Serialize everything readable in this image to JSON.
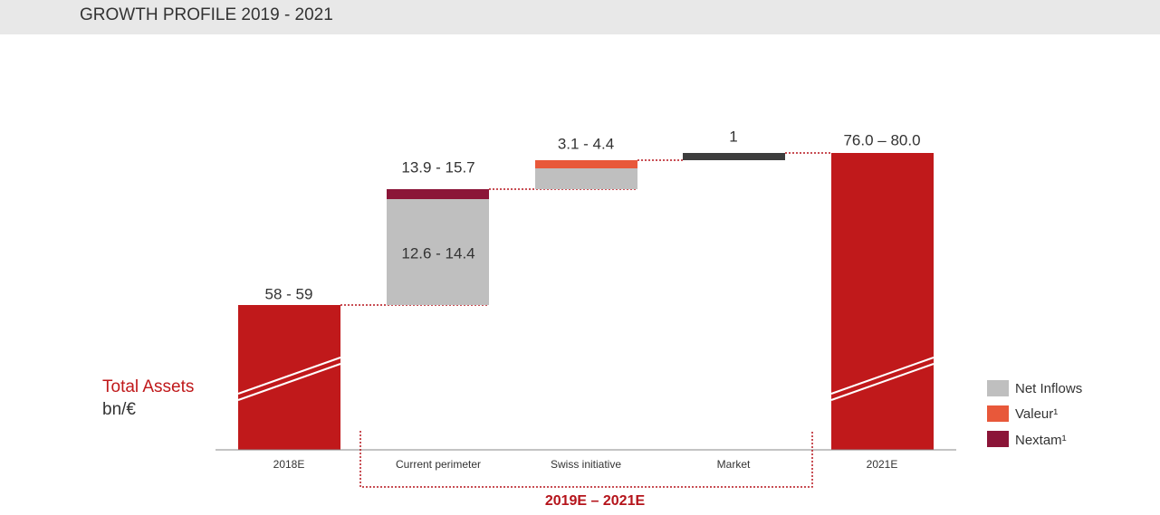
{
  "header": {
    "title": "GROWTH PROFILE 2019 - 2021"
  },
  "axis_label": {
    "title": "Total Assets",
    "unit": "bn/€"
  },
  "steps": [
    {
      "category": "2018E",
      "label": "58 - 59"
    },
    {
      "category": "Current perimeter",
      "label": "13.9 - 15.7",
      "inner_label": "12.6 - 14.4"
    },
    {
      "category": "Swiss initiative",
      "label": "3.1 - 4.4"
    },
    {
      "category": "Market",
      "label": "1"
    },
    {
      "category": "2021E",
      "label": "76.0 – 80.0"
    }
  ],
  "period_label": "2019E – 2021E",
  "legend": [
    {
      "name": "Net Inflows",
      "color": "#bfbfbf"
    },
    {
      "name": "Valeur¹",
      "color": "#e8583a"
    },
    {
      "name": "Nextam¹",
      "color": "#8b1538"
    }
  ]
}
